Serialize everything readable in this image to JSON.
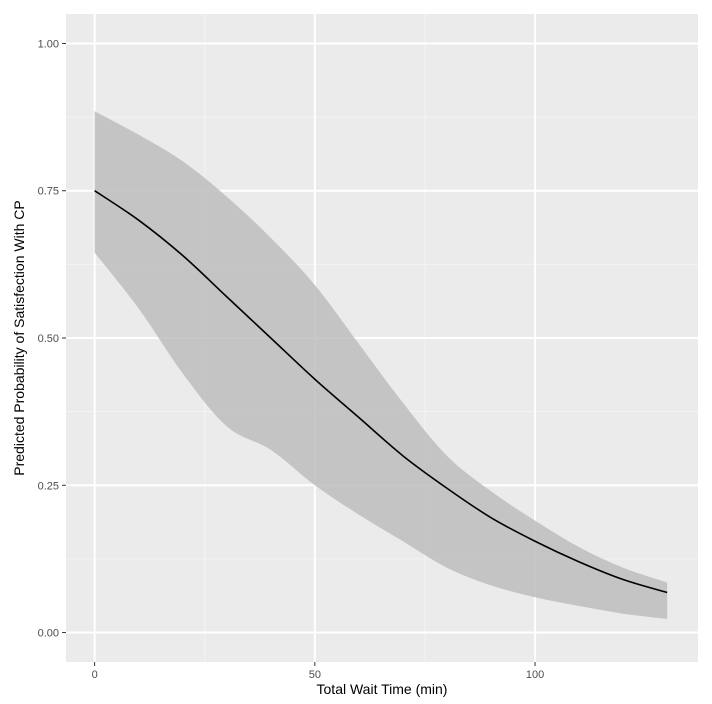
{
  "chart_data": {
    "type": "line",
    "title": "",
    "xlabel": "Total Wait Time (min)",
    "ylabel": "Predicted Probability of Satisfection With CP",
    "xlim": [
      -6.5,
      137
    ],
    "ylim": [
      -0.05,
      1.05
    ],
    "x_ticks": [
      0,
      50,
      100
    ],
    "x_tick_labels": [
      "0",
      "50",
      "100"
    ],
    "y_ticks": [
      0,
      0.25,
      0.5,
      0.75,
      1.0
    ],
    "y_tick_labels": [
      "0.00",
      "0.25",
      "0.50",
      "0.75",
      "1.00"
    ],
    "grid": true,
    "legend": "none",
    "series": [
      {
        "x": [
          0,
          10,
          20,
          30,
          40,
          50,
          60,
          70,
          80,
          90,
          100,
          110,
          120,
          130
        ],
        "y": [
          0.75,
          0.7,
          0.64,
          0.57,
          0.5,
          0.43,
          0.365,
          0.3,
          0.245,
          0.195,
          0.155,
          0.12,
          0.09,
          0.068
        ],
        "lower": [
          0.645,
          0.55,
          0.44,
          0.35,
          0.31,
          0.25,
          0.2,
          0.155,
          0.11,
          0.08,
          0.06,
          0.045,
          0.032,
          0.023
        ],
        "upper": [
          0.885,
          0.845,
          0.8,
          0.74,
          0.67,
          0.59,
          0.49,
          0.39,
          0.3,
          0.24,
          0.19,
          0.145,
          0.11,
          0.085
        ]
      }
    ],
    "colors": {
      "panel": "#ebebeb",
      "grid_major": "#ffffff",
      "grid_minor": "#f4f4f4",
      "ribbon": "#bdbdbd",
      "line": "#000000"
    }
  }
}
